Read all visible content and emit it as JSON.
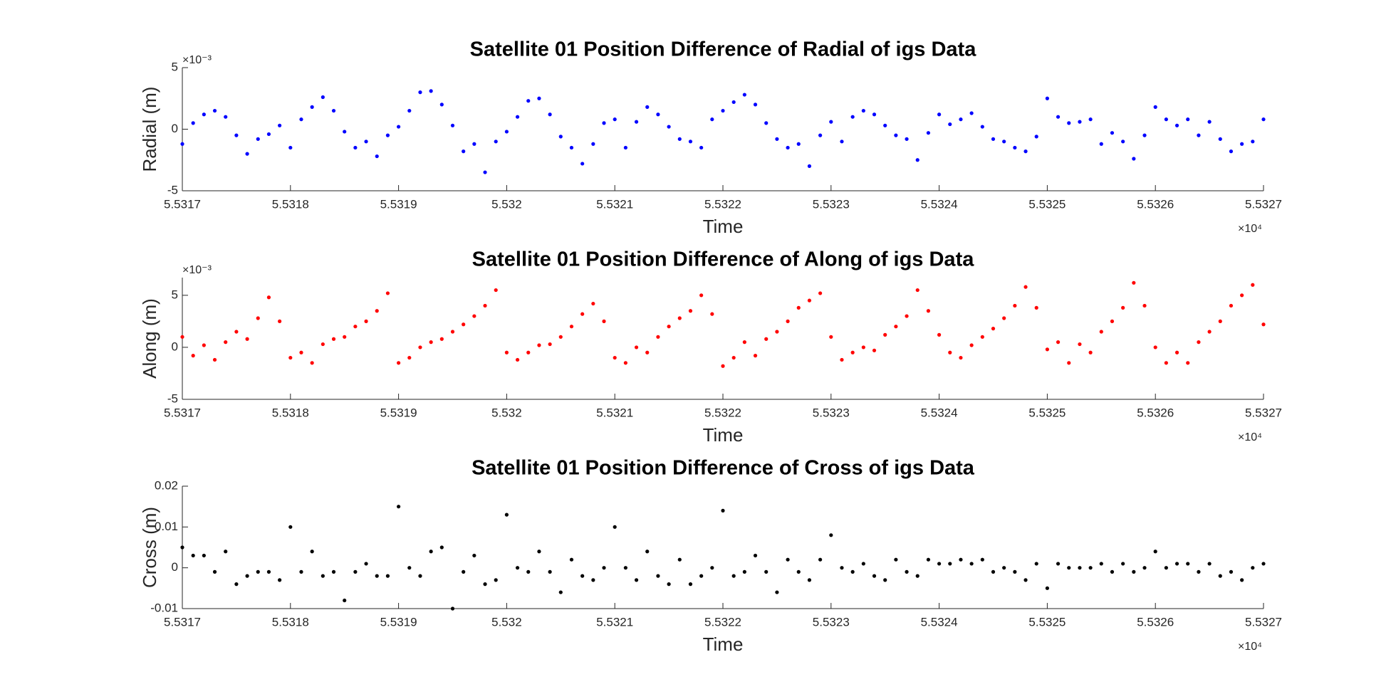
{
  "chart_data": [
    {
      "type": "scatter",
      "title": "Satellite 01 Position Difference of Radial of igs Data",
      "xlabel": "Time",
      "ylabel": "Radial (m)",
      "x_multiplier": "×10⁴",
      "y_multiplier": "×10⁻³",
      "color": "#0000ff",
      "xlim": [
        55317,
        55327
      ],
      "xticks": [
        {
          "value": 55317,
          "label": "5.5317"
        },
        {
          "value": 55318,
          "label": "5.5318"
        },
        {
          "value": 55319,
          "label": "5.5319"
        },
        {
          "value": 55320,
          "label": "5.532"
        },
        {
          "value": 55321,
          "label": "5.5321"
        },
        {
          "value": 55322,
          "label": "5.5322"
        },
        {
          "value": 55323,
          "label": "5.5323"
        },
        {
          "value": 55324,
          "label": "5.5324"
        },
        {
          "value": 55325,
          "label": "5.5325"
        },
        {
          "value": 55326,
          "label": "5.5326"
        },
        {
          "value": 55327,
          "label": "5.5327"
        }
      ],
      "ylim": [
        -0.005,
        0.005
      ],
      "yticks": [
        {
          "value": -0.005,
          "label": "-5"
        },
        0,
        {
          "value": 0.005,
          "label": "5"
        }
      ],
      "x": [
        55317,
        55317.1,
        55317.2,
        55317.3,
        55317.4,
        55317.5,
        55317.6,
        55317.7,
        55317.8,
        55317.9,
        55318,
        55318.1,
        55318.2,
        55318.3,
        55318.4,
        55318.5,
        55318.6,
        55318.7,
        55318.8,
        55318.9,
        55319,
        55319.1,
        55319.2,
        55319.3,
        55319.4,
        55319.5,
        55319.6,
        55319.7,
        55319.8,
        55319.9,
        55320,
        55320.1,
        55320.2,
        55320.3,
        55320.4,
        55320.5,
        55320.6,
        55320.7,
        55320.8,
        55320.9,
        55321,
        55321.1,
        55321.2,
        55321.3,
        55321.4,
        55321.5,
        55321.6,
        55321.7,
        55321.8,
        55321.9,
        55322,
        55322.1,
        55322.2,
        55322.3,
        55322.4,
        55322.5,
        55322.6,
        55322.7,
        55322.8,
        55322.9,
        55323,
        55323.1,
        55323.2,
        55323.3,
        55323.4,
        55323.5,
        55323.6,
        55323.7,
        55323.8,
        55323.9,
        55324,
        55324.1,
        55324.2,
        55324.3,
        55324.4,
        55324.5,
        55324.6,
        55324.7,
        55324.8,
        55324.9,
        55325,
        55325.1,
        55325.2,
        55325.3,
        55325.4,
        55325.5,
        55325.6,
        55325.7,
        55325.8,
        55325.9,
        55326,
        55326.1,
        55326.2,
        55326.3,
        55326.4,
        55326.5,
        55326.6,
        55326.7,
        55326.8,
        55326.9,
        55327
      ],
      "values": [
        -0.0012,
        0.0005,
        0.0012,
        0.0015,
        0.001,
        -0.0005,
        -0.002,
        -0.0008,
        -0.0004,
        0.0003,
        -0.0015,
        0.0008,
        0.0018,
        0.0026,
        0.0015,
        -0.0002,
        -0.0015,
        -0.001,
        -0.0022,
        -0.0005,
        0.0002,
        0.0015,
        0.003,
        0.0031,
        0.002,
        0.0003,
        -0.0018,
        -0.0012,
        -0.0035,
        -0.001,
        -0.0002,
        0.001,
        0.0023,
        0.0025,
        0.0012,
        -0.0006,
        -0.0015,
        -0.0028,
        -0.0012,
        0.0005,
        0.0008,
        -0.0015,
        0.0006,
        0.0018,
        0.0012,
        0.0002,
        -0.0008,
        -0.001,
        -0.0015,
        0.0008,
        0.0015,
        0.0022,
        0.0028,
        0.002,
        0.0005,
        -0.0008,
        -0.0015,
        -0.0012,
        -0.003,
        -0.0005,
        0.0006,
        -0.001,
        0.001,
        0.0015,
        0.0012,
        0.0003,
        -0.0005,
        -0.0008,
        -0.0025,
        -0.0003,
        0.0012,
        0.0004,
        0.0008,
        0.0013,
        0.0002,
        -0.0008,
        -0.001,
        -0.0015,
        -0.0018,
        -0.0006,
        0.0025,
        0.001,
        0.0005,
        0.0006,
        0.0008,
        -0.0012,
        -0.0003,
        -0.001,
        -0.0024,
        -0.0005,
        0.0018,
        0.0008,
        0.0003,
        0.0008,
        -0.0005,
        0.0006,
        -0.0008,
        -0.0018,
        -0.0012,
        -0.001,
        0.0008
      ]
    },
    {
      "type": "scatter",
      "title": "Satellite 01 Position Difference of Along of igs Data",
      "xlabel": "Time",
      "ylabel": "Along (m)",
      "x_multiplier": "×10⁴",
      "y_multiplier": "×10⁻³",
      "color": "#ff0000",
      "xlim": [
        55317,
        55327
      ],
      "xticks": [
        {
          "value": 55317,
          "label": "5.5317"
        },
        {
          "value": 55318,
          "label": "5.5318"
        },
        {
          "value": 55319,
          "label": "5.5319"
        },
        {
          "value": 55320,
          "label": "5.532"
        },
        {
          "value": 55321,
          "label": "5.5321"
        },
        {
          "value": 55322,
          "label": "5.5322"
        },
        {
          "value": 55323,
          "label": "5.5323"
        },
        {
          "value": 55324,
          "label": "5.5324"
        },
        {
          "value": 55325,
          "label": "5.5325"
        },
        {
          "value": 55326,
          "label": "5.5326"
        },
        {
          "value": 55327,
          "label": "5.5327"
        }
      ],
      "ylim": [
        -0.005,
        0.0067
      ],
      "yticks": [
        {
          "value": -0.005,
          "label": "-5"
        },
        0,
        {
          "value": 0.005,
          "label": "5"
        }
      ],
      "x": [
        55317,
        55317.1,
        55317.2,
        55317.3,
        55317.4,
        55317.5,
        55317.6,
        55317.7,
        55317.8,
        55317.9,
        55318,
        55318.1,
        55318.2,
        55318.3,
        55318.4,
        55318.5,
        55318.6,
        55318.7,
        55318.8,
        55318.9,
        55319,
        55319.1,
        55319.2,
        55319.3,
        55319.4,
        55319.5,
        55319.6,
        55319.7,
        55319.8,
        55319.9,
        55320,
        55320.1,
        55320.2,
        55320.3,
        55320.4,
        55320.5,
        55320.6,
        55320.7,
        55320.8,
        55320.9,
        55321,
        55321.1,
        55321.2,
        55321.3,
        55321.4,
        55321.5,
        55321.6,
        55321.7,
        55321.8,
        55321.9,
        55322,
        55322.1,
        55322.2,
        55322.3,
        55322.4,
        55322.5,
        55322.6,
        55322.7,
        55322.8,
        55322.9,
        55323,
        55323.1,
        55323.2,
        55323.3,
        55323.4,
        55323.5,
        55323.6,
        55323.7,
        55323.8,
        55323.9,
        55324,
        55324.1,
        55324.2,
        55324.3,
        55324.4,
        55324.5,
        55324.6,
        55324.7,
        55324.8,
        55324.9,
        55325,
        55325.1,
        55325.2,
        55325.3,
        55325.4,
        55325.5,
        55325.6,
        55325.7,
        55325.8,
        55325.9,
        55326,
        55326.1,
        55326.2,
        55326.3,
        55326.4,
        55326.5,
        55326.6,
        55326.7,
        55326.8,
        55326.9,
        55327
      ],
      "values": [
        0.001,
        -0.0008,
        0.0002,
        -0.0012,
        0.0005,
        0.0015,
        0.0008,
        0.0028,
        0.0048,
        0.0025,
        -0.001,
        -0.0005,
        -0.0015,
        0.0003,
        0.0008,
        0.001,
        0.002,
        0.0025,
        0.0035,
        0.0052,
        -0.0015,
        -0.001,
        0,
        0.0005,
        0.0008,
        0.0015,
        0.0022,
        0.003,
        0.004,
        0.0055,
        -0.0005,
        -0.0012,
        -0.0005,
        0.0002,
        0.0003,
        0.001,
        0.002,
        0.0032,
        0.0042,
        0.0025,
        -0.001,
        -0.0015,
        0,
        -0.0005,
        0.001,
        0.002,
        0.0028,
        0.0035,
        0.005,
        0.0032,
        -0.0018,
        -0.001,
        0.0005,
        -0.0008,
        0.0008,
        0.0015,
        0.0025,
        0.0038,
        0.0045,
        0.0052,
        0.001,
        -0.0012,
        -0.0005,
        0,
        -0.0003,
        0.0012,
        0.002,
        0.003,
        0.0055,
        0.0035,
        0.0012,
        -0.0005,
        -0.001,
        0.0002,
        0.001,
        0.0018,
        0.0028,
        0.004,
        0.0058,
        0.0038,
        -0.0002,
        0.0005,
        -0.0015,
        0.0003,
        -0.0005,
        0.0015,
        0.0025,
        0.0038,
        0.0062,
        0.004,
        0,
        -0.0015,
        -0.0005,
        -0.0015,
        0.0005,
        0.0015,
        0.0025,
        0.004,
        0.005,
        0.006,
        0.0022
      ]
    },
    {
      "type": "scatter",
      "title": "Satellite 01 Position Difference of Cross of igs Data",
      "xlabel": "Time",
      "ylabel": "Cross (m)",
      "x_multiplier": "×10⁴",
      "color": "#000000",
      "xlim": [
        55317,
        55327
      ],
      "xticks": [
        {
          "value": 55317,
          "label": "5.5317"
        },
        {
          "value": 55318,
          "label": "5.5318"
        },
        {
          "value": 55319,
          "label": "5.5319"
        },
        {
          "value": 55320,
          "label": "5.532"
        },
        {
          "value": 55321,
          "label": "5.5321"
        },
        {
          "value": 55322,
          "label": "5.5322"
        },
        {
          "value": 55323,
          "label": "5.5323"
        },
        {
          "value": 55324,
          "label": "5.5324"
        },
        {
          "value": 55325,
          "label": "5.5325"
        },
        {
          "value": 55326,
          "label": "5.5326"
        },
        {
          "value": 55327,
          "label": "5.5327"
        }
      ],
      "ylim": [
        -0.01,
        0.02
      ],
      "yticks": [
        -0.01,
        0,
        0.01,
        0.02
      ],
      "x": [
        55317,
        55317.1,
        55317.2,
        55317.3,
        55317.4,
        55317.5,
        55317.6,
        55317.7,
        55317.8,
        55317.9,
        55318,
        55318.1,
        55318.2,
        55318.3,
        55318.4,
        55318.5,
        55318.6,
        55318.7,
        55318.8,
        55318.9,
        55319,
        55319.1,
        55319.2,
        55319.3,
        55319.4,
        55319.5,
        55319.6,
        55319.7,
        55319.8,
        55319.9,
        55320,
        55320.1,
        55320.2,
        55320.3,
        55320.4,
        55320.5,
        55320.6,
        55320.7,
        55320.8,
        55320.9,
        55321,
        55321.1,
        55321.2,
        55321.3,
        55321.4,
        55321.5,
        55321.6,
        55321.7,
        55321.8,
        55321.9,
        55322,
        55322.1,
        55322.2,
        55322.3,
        55322.4,
        55322.5,
        55322.6,
        55322.7,
        55322.8,
        55322.9,
        55323,
        55323.1,
        55323.2,
        55323.3,
        55323.4,
        55323.5,
        55323.6,
        55323.7,
        55323.8,
        55323.9,
        55324,
        55324.1,
        55324.2,
        55324.3,
        55324.4,
        55324.5,
        55324.6,
        55324.7,
        55324.8,
        55324.9,
        55325,
        55325.1,
        55325.2,
        55325.3,
        55325.4,
        55325.5,
        55325.6,
        55325.7,
        55325.8,
        55325.9,
        55326,
        55326.1,
        55326.2,
        55326.3,
        55326.4,
        55326.5,
        55326.6,
        55326.7,
        55326.8,
        55326.9,
        55327
      ],
      "values": [
        0.005,
        0.003,
        0.003,
        -0.001,
        0.004,
        -0.004,
        -0.002,
        -0.001,
        -0.001,
        -0.003,
        0.01,
        -0.001,
        0.004,
        -0.002,
        -0.001,
        -0.008,
        -0.001,
        0.001,
        -0.002,
        -0.002,
        0.015,
        0,
        -0.002,
        0.004,
        0.005,
        -0.01,
        -0.001,
        0.003,
        -0.004,
        -0.003,
        0.013,
        0,
        -0.001,
        0.004,
        -0.001,
        -0.006,
        0.002,
        -0.002,
        -0.003,
        0,
        0.01,
        0,
        -0.003,
        0.004,
        -0.002,
        -0.004,
        0.002,
        -0.004,
        -0.002,
        0,
        0.014,
        -0.002,
        -0.001,
        0.003,
        -0.001,
        -0.006,
        0.002,
        -0.001,
        -0.003,
        0.002,
        0.008,
        0,
        -0.001,
        0.001,
        -0.002,
        -0.003,
        0.002,
        -0.001,
        -0.002,
        0.002,
        0.001,
        0.001,
        0.002,
        0.001,
        0.002,
        -0.001,
        0,
        -0.001,
        -0.003,
        0.001,
        -0.005,
        0.001,
        0,
        0,
        0,
        0.001,
        -0.001,
        0.001,
        -0.001,
        0,
        0.004,
        0,
        0.001,
        0.001,
        -0.001,
        0.001,
        -0.002,
        -0.001,
        -0.003,
        0,
        0.001
      ]
    }
  ]
}
